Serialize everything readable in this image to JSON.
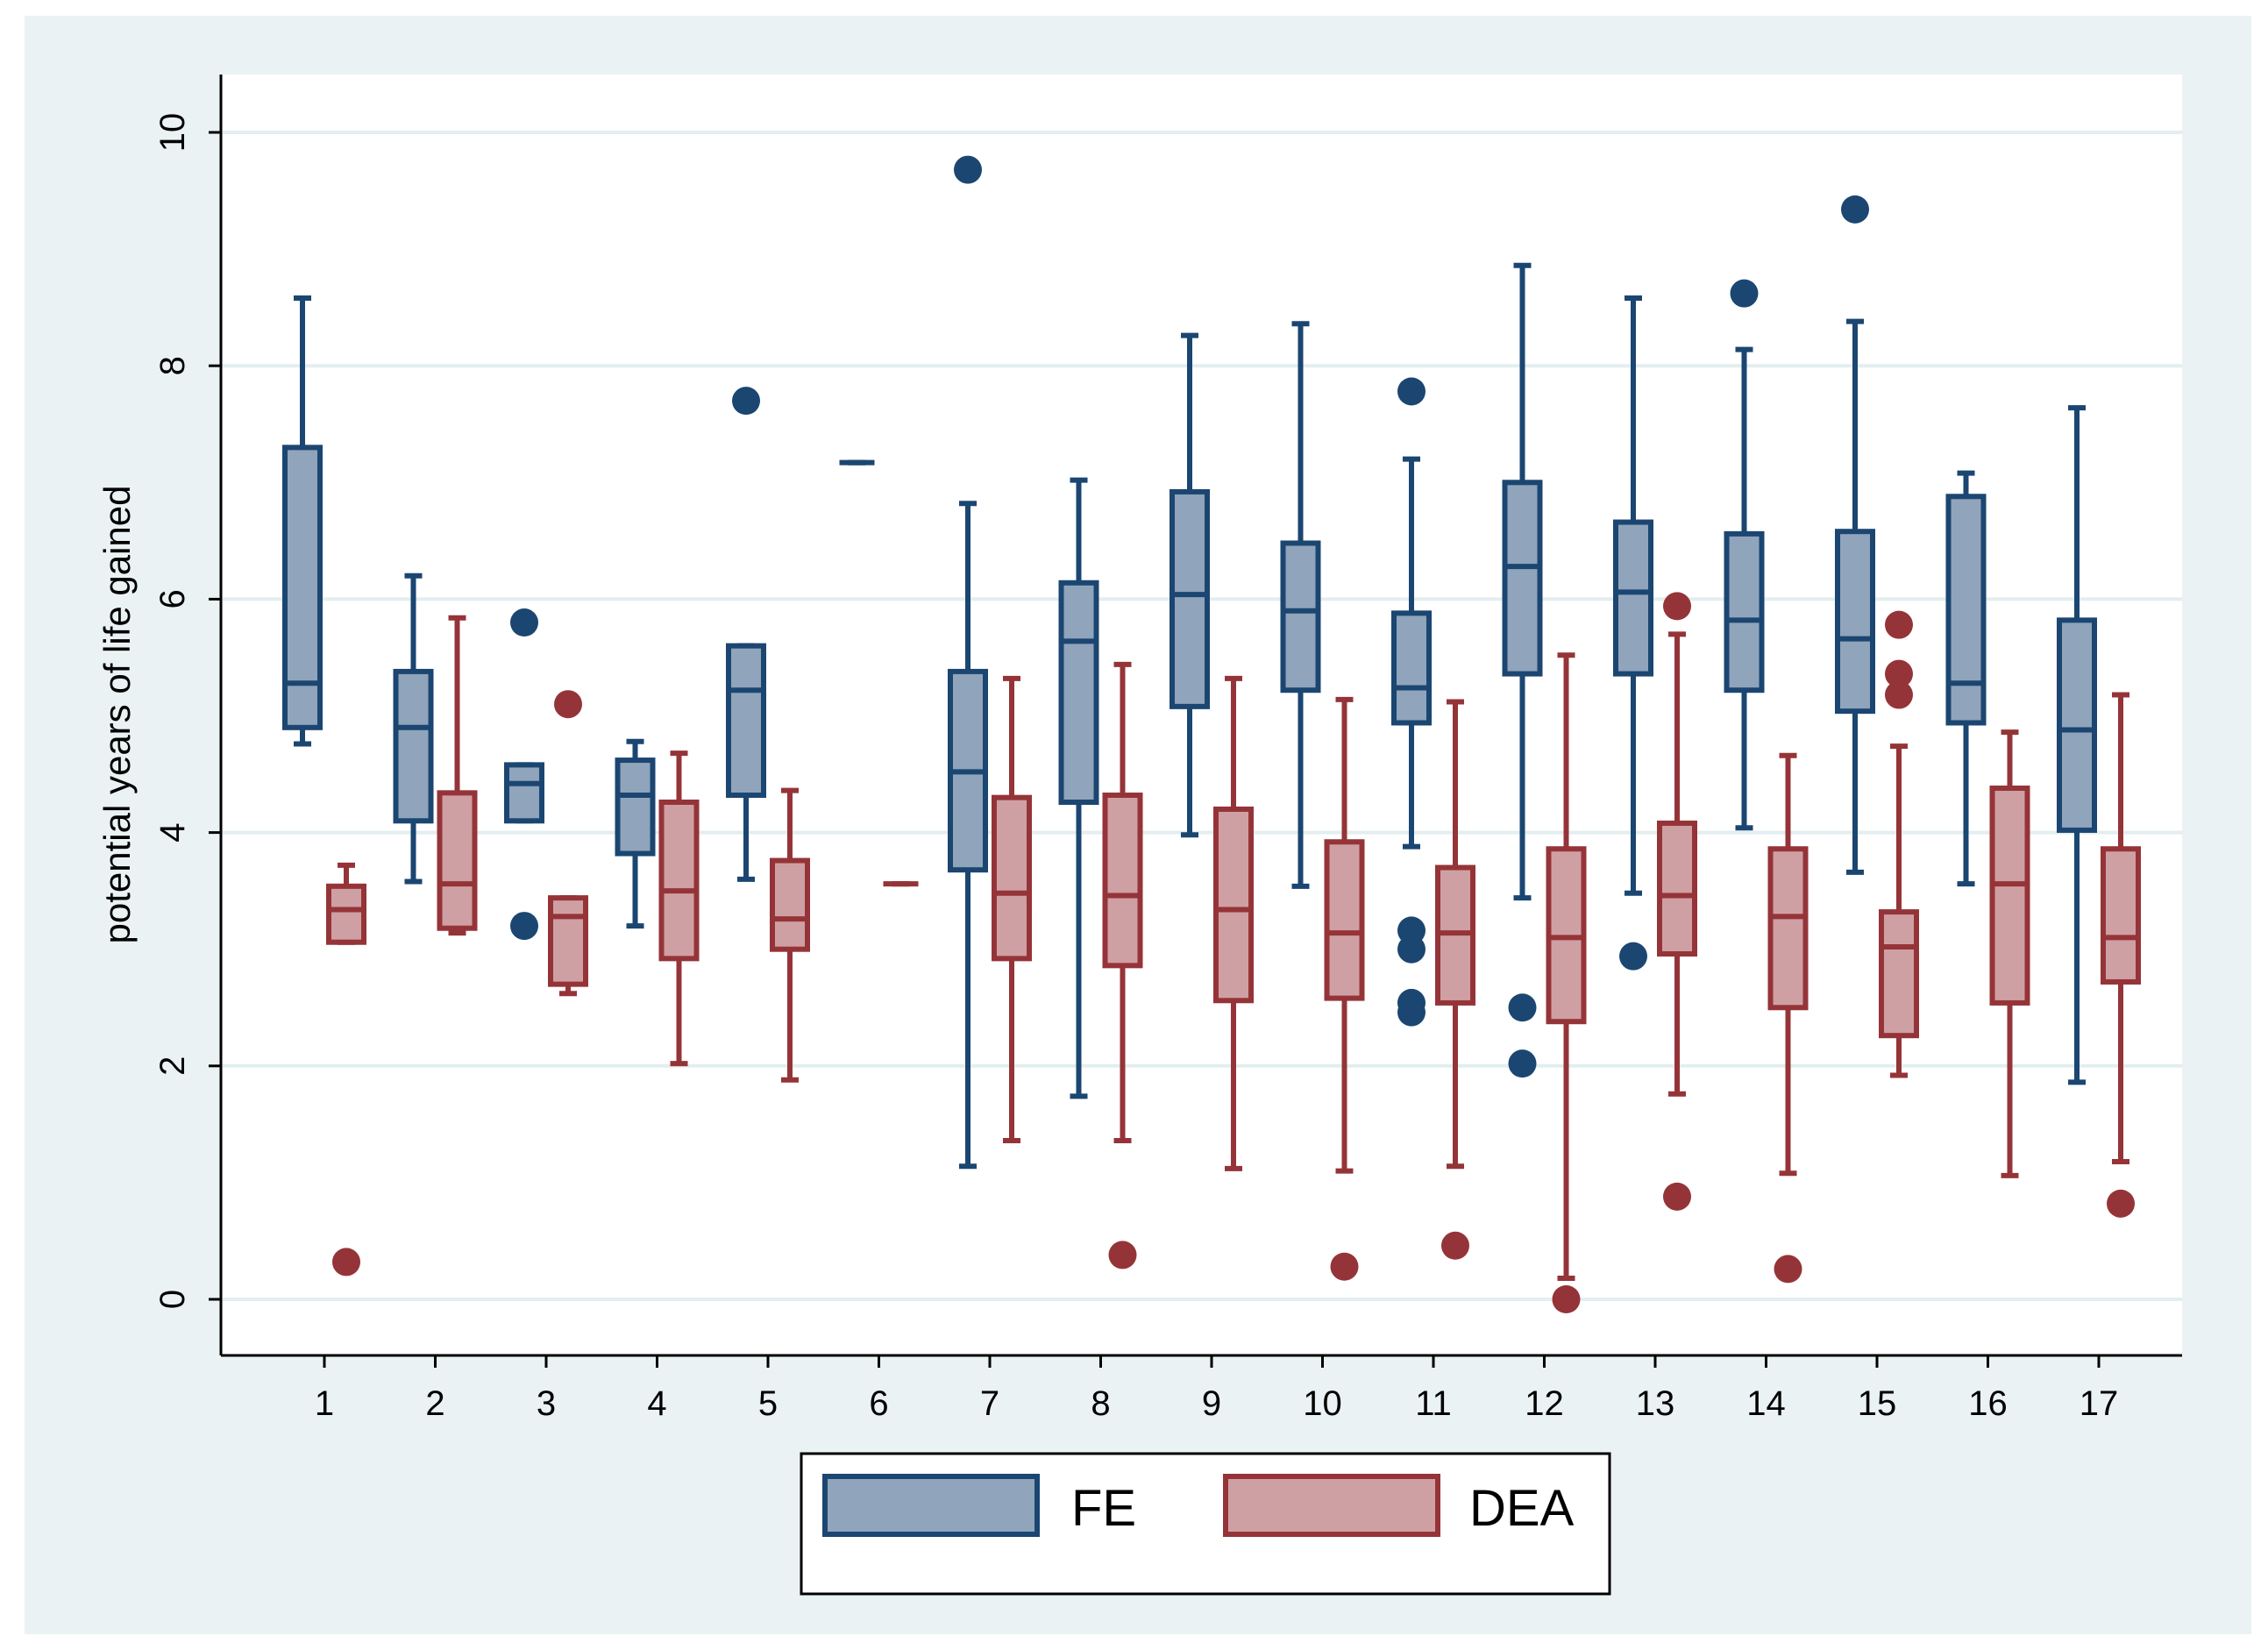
{
  "chart_data": {
    "type": "boxplot",
    "title": "",
    "xlabel": "",
    "ylabel": "potential years of life gained",
    "ylim": [
      0,
      10
    ],
    "yticks": [
      0,
      2,
      4,
      6,
      8,
      10
    ],
    "grid": true,
    "categories": [
      "1",
      "2",
      "3",
      "4",
      "5",
      "6",
      "7",
      "8",
      "9",
      "10",
      "11",
      "12",
      "13",
      "14",
      "15",
      "16",
      "17"
    ],
    "colors": {
      "FE": {
        "fill": "#90a4bb",
        "stroke": "#1b4671"
      },
      "DEA": {
        "fill": "#cfa0a3",
        "stroke": "#953438"
      },
      "outer_bg": "#eaf2f3",
      "plot_bg": "#ffffff",
      "grid": "#e3eef0"
    },
    "legend": {
      "position": "bottom-center",
      "entries": [
        "FE",
        "DEA"
      ]
    },
    "series": [
      {
        "name": "FE",
        "boxes": [
          {
            "whisker_low": 4.76,
            "q1": 4.9,
            "median": 5.28,
            "q3": 7.3,
            "whisker_high": 8.58,
            "outliers": []
          },
          {
            "whisker_low": 3.58,
            "q1": 4.1,
            "median": 4.9,
            "q3": 5.38,
            "whisker_high": 6.2,
            "outliers": []
          },
          {
            "whisker_low": 4.1,
            "q1": 4.1,
            "median": 4.42,
            "q3": 4.58,
            "whisker_high": 4.58,
            "outliers": [
              5.8,
              3.2
            ]
          },
          {
            "whisker_low": 3.2,
            "q1": 3.82,
            "median": 4.32,
            "q3": 4.62,
            "whisker_high": 4.78,
            "outliers": []
          },
          {
            "whisker_low": 3.6,
            "q1": 4.32,
            "median": 5.22,
            "q3": 5.6,
            "whisker_high": 5.6,
            "outliers": [
              7.7
            ]
          },
          {
            "whisker_low": 7.17,
            "q1": 7.17,
            "median": 7.17,
            "q3": 7.17,
            "whisker_high": 7.17,
            "outliers": []
          },
          {
            "whisker_low": 1.14,
            "q1": 3.68,
            "median": 4.52,
            "q3": 5.38,
            "whisker_high": 6.82,
            "outliers": [
              9.68
            ]
          },
          {
            "whisker_low": 1.74,
            "q1": 4.26,
            "median": 5.64,
            "q3": 6.14,
            "whisker_high": 7.02,
            "outliers": []
          },
          {
            "whisker_low": 3.98,
            "q1": 5.08,
            "median": 6.04,
            "q3": 6.92,
            "whisker_high": 8.26,
            "outliers": []
          },
          {
            "whisker_low": 3.54,
            "q1": 5.22,
            "median": 5.9,
            "q3": 6.48,
            "whisker_high": 8.36,
            "outliers": []
          },
          {
            "whisker_low": 3.88,
            "q1": 4.94,
            "median": 5.24,
            "q3": 5.88,
            "whisker_high": 7.2,
            "outliers": [
              7.78,
              3.16,
              3.0,
              2.54,
              2.46
            ]
          },
          {
            "whisker_low": 3.44,
            "q1": 5.36,
            "median": 6.28,
            "q3": 7.0,
            "whisker_high": 8.86,
            "outliers": [
              2.5,
              2.02
            ]
          },
          {
            "whisker_low": 3.48,
            "q1": 5.36,
            "median": 6.06,
            "q3": 6.66,
            "whisker_high": 8.58,
            "outliers": [
              2.94
            ]
          },
          {
            "whisker_low": 4.04,
            "q1": 5.22,
            "median": 5.82,
            "q3": 6.56,
            "whisker_high": 8.14,
            "outliers": [
              8.62
            ]
          },
          {
            "whisker_low": 3.66,
            "q1": 5.04,
            "median": 5.66,
            "q3": 6.58,
            "whisker_high": 8.38,
            "outliers": [
              9.34
            ]
          },
          {
            "whisker_low": 3.56,
            "q1": 4.94,
            "median": 5.28,
            "q3": 6.88,
            "whisker_high": 7.08,
            "outliers": []
          },
          {
            "whisker_low": 1.86,
            "q1": 4.02,
            "median": 4.88,
            "q3": 5.82,
            "whisker_high": 7.64,
            "outliers": []
          }
        ]
      },
      {
        "name": "DEA",
        "boxes": [
          {
            "whisker_low": 3.06,
            "q1": 3.06,
            "median": 3.34,
            "q3": 3.54,
            "whisker_high": 3.72,
            "outliers": [
              0.32
            ]
          },
          {
            "whisker_low": 3.14,
            "q1": 3.18,
            "median": 3.56,
            "q3": 4.34,
            "whisker_high": 5.84,
            "outliers": []
          },
          {
            "whisker_low": 2.62,
            "q1": 2.7,
            "median": 3.28,
            "q3": 3.44,
            "whisker_high": 3.44,
            "outliers": [
              5.1
            ]
          },
          {
            "whisker_low": 2.02,
            "q1": 2.92,
            "median": 3.5,
            "q3": 4.26,
            "whisker_high": 4.68,
            "outliers": []
          },
          {
            "whisker_low": 1.88,
            "q1": 3.0,
            "median": 3.26,
            "q3": 3.76,
            "whisker_high": 4.36,
            "outliers": []
          },
          {
            "whisker_low": 3.56,
            "q1": 3.56,
            "median": 3.56,
            "q3": 3.56,
            "whisker_high": 3.56,
            "outliers": []
          },
          {
            "whisker_low": 1.36,
            "q1": 2.92,
            "median": 3.48,
            "q3": 4.3,
            "whisker_high": 5.32,
            "outliers": []
          },
          {
            "whisker_low": 1.36,
            "q1": 2.86,
            "median": 3.46,
            "q3": 4.32,
            "whisker_high": 5.44,
            "outliers": [
              0.38
            ]
          },
          {
            "whisker_low": 1.12,
            "q1": 2.56,
            "median": 3.34,
            "q3": 4.2,
            "whisker_high": 5.32,
            "outliers": []
          },
          {
            "whisker_low": 1.1,
            "q1": 2.58,
            "median": 3.14,
            "q3": 3.92,
            "whisker_high": 5.14,
            "outliers": [
              0.28
            ]
          },
          {
            "whisker_low": 1.14,
            "q1": 2.54,
            "median": 3.14,
            "q3": 3.7,
            "whisker_high": 5.12,
            "outliers": [
              0.46
            ]
          },
          {
            "whisker_low": 0.18,
            "q1": 2.38,
            "median": 3.1,
            "q3": 3.86,
            "whisker_high": 5.52,
            "outliers": [
              0.0
            ]
          },
          {
            "whisker_low": 1.76,
            "q1": 2.96,
            "median": 3.46,
            "q3": 4.08,
            "whisker_high": 5.7,
            "outliers": [
              5.94,
              0.88
            ]
          },
          {
            "whisker_low": 1.08,
            "q1": 2.5,
            "median": 3.28,
            "q3": 3.86,
            "whisker_high": 4.66,
            "outliers": [
              0.26
            ]
          },
          {
            "whisker_low": 1.92,
            "q1": 2.26,
            "median": 3.02,
            "q3": 3.32,
            "whisker_high": 4.74,
            "outliers": [
              5.78,
              5.36,
              5.18
            ]
          },
          {
            "whisker_low": 1.06,
            "q1": 2.54,
            "median": 3.56,
            "q3": 4.38,
            "whisker_high": 4.86,
            "outliers": []
          },
          {
            "whisker_low": 1.18,
            "q1": 2.72,
            "median": 3.1,
            "q3": 3.86,
            "whisker_high": 5.18,
            "outliers": [
              0.82
            ]
          }
        ]
      }
    ]
  }
}
